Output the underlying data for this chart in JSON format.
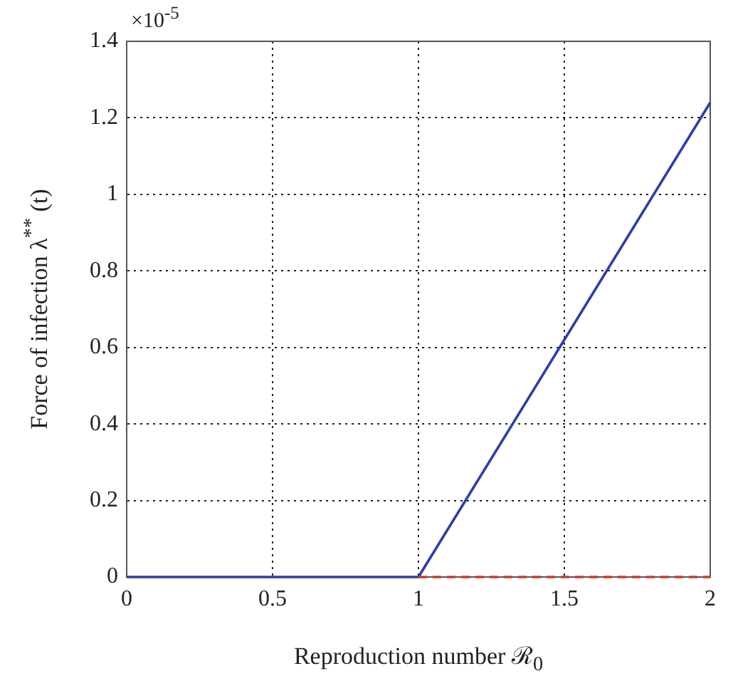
{
  "chart_data": {
    "type": "line",
    "xlabel": "Reproduction number ℛ$_{0}$",
    "ylabel": "Force of infection λ$^{**}$ (t)",
    "annotations": [
      "×10$^{-5}$"
    ],
    "xlim": [
      0,
      2
    ],
    "xticks": [
      0,
      0.5,
      1,
      1.5,
      2
    ],
    "ylim": [
      0,
      1.4
    ],
    "yticks": [
      0,
      0.2,
      0.4,
      0.6,
      0.8,
      1,
      1.2,
      1.4
    ],
    "grid": true,
    "legend": false,
    "marker": "none",
    "series": [
      {
        "color": "#2b3ea8",
        "x": [
          0,
          1,
          2
        ],
        "values": [
          0,
          0,
          1.24
        ],
        "line_style": "solid"
      },
      {
        "color": "#cc3a2a",
        "x": [
          1,
          2
        ],
        "values": [
          0,
          0
        ],
        "line_style": "dashed"
      }
    ]
  }
}
